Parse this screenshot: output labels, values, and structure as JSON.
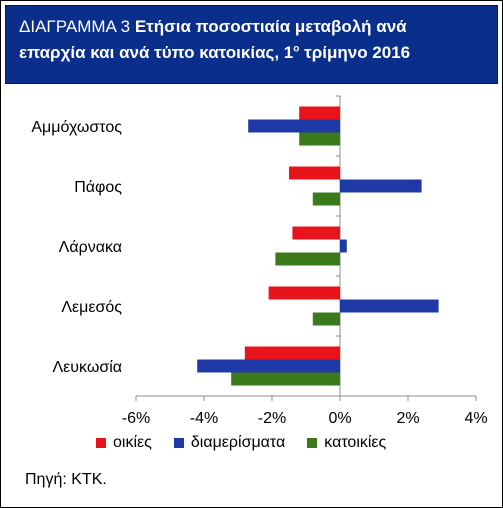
{
  "header": {
    "prefix": "ΔΙΑΓΡΑΜΜΑ 3",
    "title_rest_line1": "Ετήσια ποσοστιαία μεταβολή ανά",
    "title_line2_main": "επαρχία και ανά τύπο κατοικίας, 1",
    "title_line2_sup": "ο",
    "title_line2_end": "τρίμηνο 2016"
  },
  "source": "Πηγή: ΚΤΚ.",
  "colors": {
    "header_bg": "#0a2e8c",
    "oikies": "#e8141b",
    "diamerismata": "#1f3aa6",
    "katoikies": "#3a7a1a"
  },
  "chart_data": {
    "type": "bar",
    "orientation": "horizontal",
    "categories": [
      "Αμμόχωστος",
      "Πάφος",
      "Λάρνακα",
      "Λεμεσός",
      "Λευκωσία"
    ],
    "series": [
      {
        "name": "οικίες",
        "color": "#e8141b",
        "values": [
          -1.2,
          -1.5,
          -1.4,
          -2.1,
          -2.8
        ]
      },
      {
        "name": "διαμερίσματα",
        "color": "#1f3aa6",
        "values": [
          -2.7,
          2.4,
          0.2,
          2.9,
          -4.2
        ]
      },
      {
        "name": "κατοικίες",
        "color": "#3a7a1a",
        "values": [
          -1.2,
          -0.8,
          -1.9,
          -0.8,
          -3.2
        ]
      }
    ],
    "xlim": [
      -6,
      4
    ],
    "x_ticks": [
      "-6%",
      "-4%",
      "-2%",
      "0%",
      "2%",
      "4%"
    ],
    "x_tick_values": [
      -6,
      -4,
      -2,
      0,
      2,
      4
    ],
    "legend_position": "bottom",
    "grid": false
  }
}
